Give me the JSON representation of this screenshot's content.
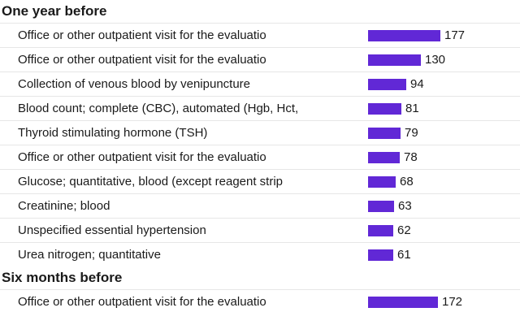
{
  "chart_data": {
    "type": "bar",
    "orientation": "horizontal",
    "bar_color": "#6128d6",
    "scale_max": 177,
    "groups": [
      {
        "title": "One year before",
        "categories": [
          "Office or other outpatient visit for the evaluatio",
          "Office or other outpatient visit for the evaluatio",
          "Collection of venous blood by venipuncture",
          "Blood count; complete (CBC), automated (Hgb, Hct,",
          "Thyroid stimulating hormone (TSH)",
          "Office or other outpatient visit for the evaluatio",
          "Glucose; quantitative, blood (except reagent strip",
          "Creatinine; blood",
          "Unspecified essential hypertension",
          "Urea nitrogen; quantitative"
        ],
        "values": [
          177,
          130,
          94,
          81,
          79,
          78,
          68,
          63,
          62,
          61
        ]
      },
      {
        "title": "Six months before",
        "categories": [
          "Office or other outpatient visit for the evaluatio"
        ],
        "values": [
          172
        ]
      }
    ]
  }
}
